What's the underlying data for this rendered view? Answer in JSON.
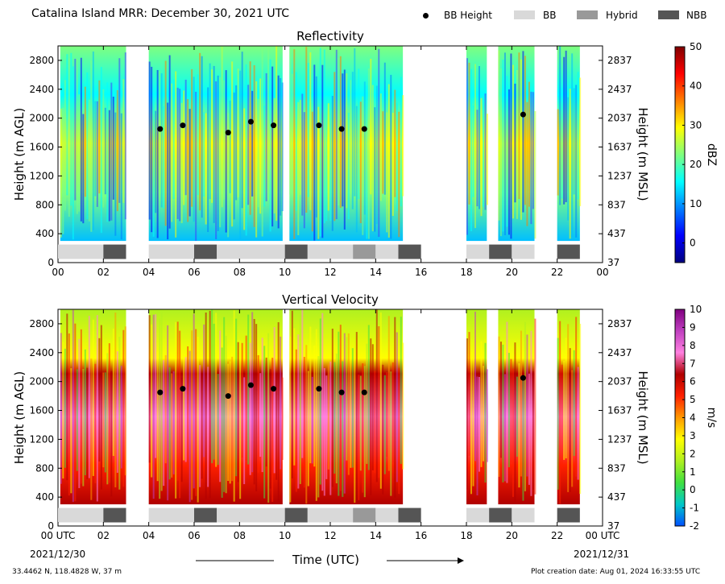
{
  "page": {
    "title": "Catalina Island MRR:  December 30, 2021 UTC",
    "footer_left": "33.4462 N, 118.4828 W, 37 m",
    "footer_right": "Plot creation date: Aug 01, 2024 16:33:55 UTC",
    "xlabel": "Time (UTC)",
    "date_start": "2021/12/30",
    "date_end": "2021/12/31"
  },
  "legend": [
    {
      "label": "BB Height",
      "kind": "dot",
      "color": "#000000"
    },
    {
      "label": "BB",
      "kind": "box",
      "color": "#d9d9d9"
    },
    {
      "label": "Hybrid",
      "kind": "box",
      "color": "#999999"
    },
    {
      "label": "NBB",
      "kind": "box",
      "color": "#555555"
    }
  ],
  "chart_data": [
    {
      "type": "heatmap",
      "title": "Reflectivity",
      "ylabel": "Height (m AGL)",
      "ylabel_right": "Height (m MSL)",
      "ylim": [
        0,
        3000
      ],
      "xlim": [
        0,
        24
      ],
      "xticks": [
        "00",
        "02",
        "04",
        "06",
        "08",
        "10",
        "12",
        "14",
        "16",
        "18",
        "20",
        "22",
        "00"
      ],
      "yticks_left": [
        0,
        400,
        800,
        1200,
        1600,
        2000,
        2400,
        2800
      ],
      "yticks_right": [
        37,
        437,
        837,
        1237,
        1637,
        2037,
        2437,
        2837
      ],
      "colorbar": {
        "label": "dBZ",
        "min": -5,
        "max": 50,
        "ticks": [
          0,
          10,
          20,
          30,
          40,
          50
        ],
        "colors": [
          "#00007f",
          "#0000ff",
          "#007fff",
          "#00ffff",
          "#7fff7f",
          "#ffff00",
          "#ff7f00",
          "#ff0000",
          "#7f0000"
        ]
      },
      "precip_periods": [
        [
          0.1,
          3.0
        ],
        [
          4.0,
          9.9
        ],
        [
          10.2,
          15.2
        ],
        [
          18.0,
          18.9
        ],
        [
          19.4,
          21.0
        ],
        [
          22.0,
          23.0
        ]
      ],
      "bb_height": {
        "x": [
          4.5,
          5.5,
          7.5,
          8.5,
          9.5,
          11.5,
          12.5,
          13.5,
          20.5
        ],
        "y": [
          1850,
          1900,
          1800,
          1950,
          1900,
          1900,
          1850,
          1850,
          2050
        ]
      },
      "bb_type": [
        {
          "start": 0.0,
          "end": 2.0,
          "type": "BB"
        },
        {
          "start": 2.0,
          "end": 3.0,
          "type": "NBB"
        },
        {
          "start": 4.0,
          "end": 6.0,
          "type": "BB"
        },
        {
          "start": 6.0,
          "end": 7.0,
          "type": "NBB"
        },
        {
          "start": 7.0,
          "end": 10.0,
          "type": "BB"
        },
        {
          "start": 10.0,
          "end": 11.0,
          "type": "NBB"
        },
        {
          "start": 11.0,
          "end": 13.0,
          "type": "BB"
        },
        {
          "start": 13.0,
          "end": 14.0,
          "type": "Hybrid"
        },
        {
          "start": 14.0,
          "end": 15.0,
          "type": "BB"
        },
        {
          "start": 15.0,
          "end": 16.0,
          "type": "NBB"
        },
        {
          "start": 18.0,
          "end": 19.0,
          "type": "BB"
        },
        {
          "start": 19.0,
          "end": 20.0,
          "type": "NBB"
        },
        {
          "start": 20.0,
          "end": 21.0,
          "type": "BB"
        },
        {
          "start": 22.0,
          "end": 23.0,
          "type": "NBB"
        }
      ]
    },
    {
      "type": "heatmap",
      "title": "Vertical Velocity",
      "ylabel": "Height (m AGL)",
      "ylabel_right": "Height (m MSL)",
      "ylim": [
        0,
        3000
      ],
      "xlim": [
        0,
        24
      ],
      "xticks": [
        "00 UTC",
        "02",
        "04",
        "06",
        "08",
        "10",
        "12",
        "14",
        "16",
        "18",
        "20",
        "22",
        "00 UTC"
      ],
      "yticks_left": [
        0,
        400,
        800,
        1200,
        1600,
        2000,
        2400,
        2800
      ],
      "yticks_right": [
        37,
        437,
        837,
        1237,
        1637,
        2037,
        2437,
        2837
      ],
      "colorbar": {
        "label": "m/s",
        "min": -2,
        "max": 10,
        "ticks": [
          -2,
          -1,
          0,
          1,
          2,
          3,
          4,
          5,
          6,
          7,
          8,
          9,
          10
        ],
        "colors": [
          "#0050ff",
          "#00c8c8",
          "#40e040",
          "#b0f020",
          "#ffff00",
          "#ff9900",
          "#ff2000",
          "#b00000",
          "#ff80e0",
          "#c040c0",
          "#800080"
        ]
      },
      "precip_periods": [
        [
          0.1,
          3.0
        ],
        [
          4.0,
          9.9
        ],
        [
          10.2,
          15.2
        ],
        [
          18.0,
          18.9
        ],
        [
          19.4,
          21.0
        ],
        [
          22.0,
          23.0
        ]
      ],
      "bb_height": {
        "x": [
          4.5,
          5.5,
          7.5,
          8.5,
          9.5,
          11.5,
          12.5,
          13.5,
          20.5
        ],
        "y": [
          1850,
          1900,
          1800,
          1950,
          1900,
          1900,
          1850,
          1850,
          2050
        ]
      },
      "bb_type": [
        {
          "start": 0.0,
          "end": 2.0,
          "type": "BB"
        },
        {
          "start": 2.0,
          "end": 3.0,
          "type": "NBB"
        },
        {
          "start": 4.0,
          "end": 6.0,
          "type": "BB"
        },
        {
          "start": 6.0,
          "end": 7.0,
          "type": "NBB"
        },
        {
          "start": 7.0,
          "end": 10.0,
          "type": "BB"
        },
        {
          "start": 10.0,
          "end": 11.0,
          "type": "NBB"
        },
        {
          "start": 11.0,
          "end": 13.0,
          "type": "BB"
        },
        {
          "start": 13.0,
          "end": 14.0,
          "type": "Hybrid"
        },
        {
          "start": 14.0,
          "end": 15.0,
          "type": "BB"
        },
        {
          "start": 15.0,
          "end": 16.0,
          "type": "NBB"
        },
        {
          "start": 18.0,
          "end": 19.0,
          "type": "BB"
        },
        {
          "start": 19.0,
          "end": 20.0,
          "type": "NBB"
        },
        {
          "start": 20.0,
          "end": 21.0,
          "type": "BB"
        },
        {
          "start": 22.0,
          "end": 23.0,
          "type": "NBB"
        }
      ]
    }
  ]
}
